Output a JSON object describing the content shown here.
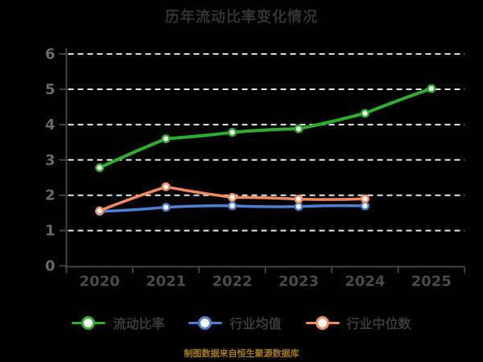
{
  "chart_data": {
    "type": "line",
    "title": "历年流动比率变化情况",
    "categories": [
      "2020",
      "2021",
      "2022",
      "2023",
      "2024",
      "2025"
    ],
    "series": [
      {
        "name": "流动比率",
        "color": "#2eae2e",
        "values": [
          2.78,
          3.6,
          3.78,
          3.88,
          4.32,
          5.02
        ]
      },
      {
        "name": "行业均值",
        "color": "#4c80d2",
        "values": [
          1.54,
          1.66,
          1.7,
          1.68,
          1.7,
          null
        ]
      },
      {
        "name": "行业中位数",
        "color": "#f18a5e",
        "values": [
          1.56,
          2.24,
          1.94,
          1.89,
          1.9,
          null
        ]
      }
    ],
    "ylabel": "",
    "xlabel": "",
    "ylim": [
      0,
      6
    ],
    "yticks": [
      0,
      1,
      2,
      3,
      4,
      5,
      6
    ],
    "grid": "horizontal-dashed-white",
    "legend_position": "bottom",
    "style": "hand-drawn-xkcd, dark background",
    "marker": "white-filled circle with colored ring",
    "footer": "制图数据来自恒生聚源数据库"
  }
}
